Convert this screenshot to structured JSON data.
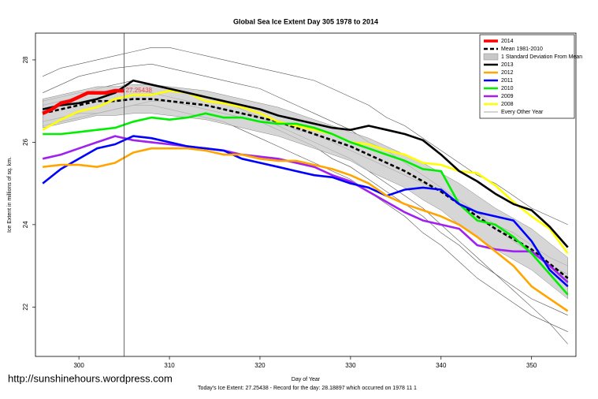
{
  "chart_data": {
    "type": "line",
    "title": "Global Sea Ice Extent Day 305 1978 to 2014",
    "x_label": "Day of Year",
    "y_label": "Ice Extent in millions of sq. km.",
    "footer": "Today's Ice Extent: 27.25438  - Record for the day: 28.18897 which occurred on 1978 11 1",
    "watermark": "http://sunshinehours.wordpress.com",
    "annotation": "27.25438",
    "vline": 305,
    "xlim": [
      295.2,
      354.9
    ],
    "ylim": [
      20.8,
      28.65
    ],
    "xticks": [
      300,
      310,
      320,
      330,
      340,
      350
    ],
    "yticks": [
      22,
      24,
      26,
      28
    ],
    "x": [
      296,
      298,
      300,
      302,
      304,
      306,
      308,
      310,
      312,
      314,
      316,
      318,
      320,
      322,
      324,
      326,
      328,
      330,
      332,
      334,
      336,
      338,
      340,
      342,
      344,
      346,
      348,
      350,
      352,
      354
    ],
    "legend": "top-right",
    "series": [
      {
        "name": "2014",
        "color": "#ff0000",
        "style": "thick",
        "x": [
          296,
          297,
          298,
          299,
          300,
          301,
          302,
          303,
          304,
          305
        ],
        "values": [
          26.7,
          26.8,
          26.95,
          27.0,
          27.1,
          27.2,
          27.2,
          27.2,
          27.25,
          27.25
        ]
      },
      {
        "name": "Mean 1981-2010",
        "color": "#000000",
        "style": "dashed",
        "values": [
          26.7,
          26.8,
          26.9,
          27.0,
          27.0,
          27.05,
          27.05,
          27.0,
          26.95,
          26.9,
          26.8,
          26.7,
          26.6,
          26.5,
          26.35,
          26.2,
          26.05,
          25.9,
          25.7,
          25.5,
          25.3,
          25.05,
          24.8,
          24.5,
          24.2,
          23.9,
          23.65,
          23.4,
          23.05,
          22.7
        ]
      },
      {
        "name": "1 Standard Deviation From Mean",
        "color": "#c8c8c8",
        "style": "band",
        "upper": [
          27.05,
          27.15,
          27.25,
          27.35,
          27.35,
          27.4,
          27.4,
          27.35,
          27.3,
          27.25,
          27.15,
          27.05,
          26.95,
          26.85,
          26.7,
          26.55,
          26.4,
          26.25,
          26.1,
          25.9,
          25.7,
          25.5,
          25.25,
          25.0,
          24.7,
          24.4,
          24.15,
          23.9,
          23.55,
          23.2
        ],
        "lower": [
          26.35,
          26.45,
          26.55,
          26.65,
          26.65,
          26.7,
          26.7,
          26.65,
          26.6,
          26.55,
          26.45,
          26.35,
          26.25,
          26.15,
          26.0,
          25.85,
          25.7,
          25.55,
          25.3,
          25.1,
          24.9,
          24.6,
          24.35,
          24.0,
          23.7,
          23.4,
          23.15,
          22.9,
          22.55,
          22.2
        ]
      },
      {
        "name": "2013",
        "color": "#000000",
        "style": "line",
        "values": [
          26.8,
          26.9,
          26.95,
          27.05,
          27.2,
          27.5,
          27.4,
          27.3,
          27.2,
          27.1,
          27.0,
          26.9,
          26.8,
          26.65,
          26.55,
          26.45,
          26.35,
          26.3,
          26.4,
          26.3,
          26.2,
          26.05,
          25.7,
          25.3,
          25.05,
          24.75,
          24.5,
          24.35,
          23.95,
          23.45
        ]
      },
      {
        "name": "2012",
        "color": "#ffa500",
        "style": "line",
        "values": [
          25.4,
          25.45,
          25.45,
          25.4,
          25.5,
          25.75,
          25.85,
          25.85,
          25.85,
          25.8,
          25.7,
          25.7,
          25.6,
          25.55,
          25.55,
          25.45,
          25.35,
          25.2,
          25.0,
          24.7,
          24.5,
          24.35,
          24.2,
          24.0,
          23.7,
          23.35,
          23.0,
          22.5,
          22.2,
          21.9
        ]
      },
      {
        "name": "2011",
        "color": "#0000ff",
        "style": "line",
        "values": [
          25.0,
          25.35,
          25.6,
          25.85,
          25.95,
          26.15,
          26.1,
          26.0,
          25.9,
          25.85,
          25.8,
          25.6,
          25.5,
          25.4,
          25.3,
          25.2,
          25.15,
          25.0,
          24.9,
          24.7,
          24.85,
          24.9,
          24.85,
          24.5,
          24.3,
          24.2,
          24.1,
          23.6,
          22.9,
          22.5
        ]
      },
      {
        "name": "2010",
        "color": "#00ee00",
        "style": "line",
        "values": [
          26.2,
          26.2,
          26.25,
          26.3,
          26.35,
          26.5,
          26.6,
          26.55,
          26.6,
          26.7,
          26.6,
          26.6,
          26.5,
          26.45,
          26.45,
          26.35,
          26.2,
          26.0,
          25.85,
          25.7,
          25.55,
          25.35,
          25.3,
          24.5,
          24.1,
          24.0,
          23.7,
          23.3,
          22.8,
          22.3
        ]
      },
      {
        "name": "2009",
        "color": "#a020f0",
        "style": "line",
        "values": [
          25.6,
          25.7,
          25.85,
          26.0,
          26.15,
          26.05,
          26.0,
          25.95,
          25.9,
          25.85,
          25.8,
          25.7,
          25.65,
          25.6,
          25.5,
          25.4,
          25.2,
          25.05,
          24.8,
          24.55,
          24.3,
          24.1,
          24.0,
          23.9,
          23.5,
          23.4,
          23.35,
          23.35,
          23.0,
          22.6
        ]
      },
      {
        "name": "2008",
        "color": "#ffff00",
        "style": "line",
        "values": [
          26.3,
          26.55,
          26.75,
          26.85,
          27.05,
          27.15,
          27.15,
          27.25,
          27.2,
          27.0,
          26.95,
          26.85,
          26.7,
          26.5,
          26.4,
          26.3,
          26.2,
          26.0,
          25.95,
          25.8,
          25.7,
          25.5,
          25.45,
          25.3,
          25.25,
          24.95,
          24.55,
          24.2,
          23.9,
          23.3
        ]
      },
      {
        "name": "Every Other Year",
        "color": "#555555",
        "style": "thin",
        "lines": [
          [
            27.6,
            27.8,
            27.9,
            28.0,
            28.1,
            28.2,
            28.3,
            28.3,
            28.2,
            28.1,
            28.0,
            27.9,
            27.8,
            27.7,
            27.6,
            27.5,
            27.3,
            27.1,
            26.9,
            26.6,
            26.4,
            26.1,
            25.8,
            25.5,
            25.2,
            25.0,
            24.7,
            24.4,
            24.2,
            24.0
          ],
          [
            27.2,
            27.4,
            27.6,
            27.7,
            27.8,
            27.85,
            27.9,
            27.8,
            27.7,
            27.6,
            27.5,
            27.4,
            27.3,
            27.1,
            26.9,
            26.7,
            26.5,
            26.3,
            26.0,
            25.8,
            25.5,
            25.2,
            24.9,
            24.6,
            24.3,
            23.9,
            23.6,
            23.3,
            23.0,
            22.8
          ],
          [
            26.9,
            27.0,
            27.1,
            27.3,
            27.4,
            27.5,
            27.4,
            27.3,
            27.2,
            27.1,
            27.0,
            26.8,
            26.6,
            26.4,
            26.2,
            26.0,
            25.8,
            25.6,
            25.3,
            25.0,
            24.7,
            24.4,
            24.0,
            23.6,
            23.2,
            22.8,
            22.4,
            22.0,
            21.6,
            21.1
          ],
          [
            26.5,
            26.6,
            26.7,
            26.7,
            26.8,
            26.9,
            26.9,
            26.8,
            26.7,
            26.6,
            26.5,
            26.3,
            26.1,
            25.9,
            25.7,
            25.5,
            25.3,
            25.1,
            24.8,
            24.5,
            24.2,
            23.8,
            23.5,
            23.1,
            22.7,
            22.4,
            22.1,
            21.8,
            21.6,
            21.4
          ],
          [
            27.0,
            27.1,
            27.2,
            27.2,
            27.3,
            27.3,
            27.2,
            27.1,
            27.0,
            26.9,
            26.8,
            26.7,
            26.6,
            26.5,
            26.3,
            26.2,
            26.0,
            25.8,
            25.6,
            25.4,
            25.2,
            25.0,
            24.8,
            24.5,
            24.3,
            24.0,
            23.8,
            23.5,
            23.2,
            23.0
          ],
          [
            26.4,
            26.5,
            26.6,
            26.7,
            26.8,
            26.9,
            27.0,
            27.0,
            26.9,
            26.8,
            26.7,
            26.6,
            26.5,
            26.3,
            26.1,
            25.9,
            25.6,
            25.4,
            25.1,
            24.8,
            24.5,
            24.2,
            23.8,
            23.5,
            23.1,
            22.8,
            22.5,
            22.2,
            22.0,
            21.8
          ]
        ]
      }
    ]
  }
}
